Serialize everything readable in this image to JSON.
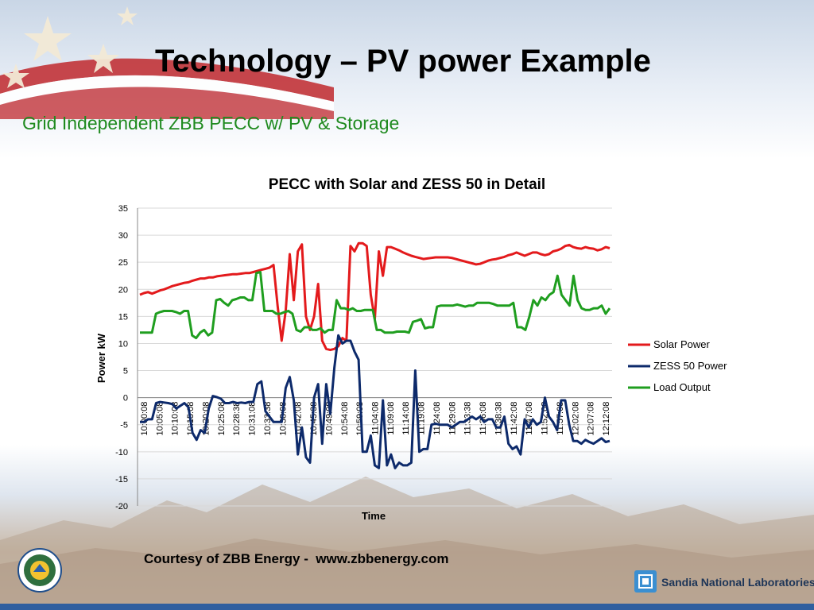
{
  "slide": {
    "title": "Technology – PV power Example",
    "subtitle": "Grid Independent ZBB PECC w/ PV  & Storage",
    "courtesy": "Courtesy of ZBB Energy -  www.zbbenergy.com",
    "sandia_label": "Sandia National Laboratories",
    "doe_seal": "doe-seal-icon",
    "sandia_icon": "sandia-thunderbird-icon"
  },
  "colors": {
    "solar": "#e31a1c",
    "zess": "#0d2a6b",
    "load": "#1f9e1f",
    "subtitle": "#1f8a1f",
    "grid": "#d9d9d9"
  },
  "chart_data": {
    "type": "line",
    "title": "PECC with Solar and ZESS 50 in Detail",
    "xlabel": "Time",
    "ylabel": "Power kW",
    "ylim": [
      -20,
      35
    ],
    "yticks": [
      35,
      30,
      25,
      20,
      15,
      10,
      5,
      0,
      -5,
      -10,
      -15,
      -20
    ],
    "grid": "horizontal",
    "legend": "right",
    "x_tick_labels": [
      "10:00:08",
      "10:05:08",
      "10:10:08",
      "10:15:08",
      "10:20:08",
      "10:25:08",
      "10:28:38",
      "10:31:08",
      "10:33:38",
      "10:38:08",
      "10:42:08",
      "10:45:38",
      "10:49:08",
      "10:54:08",
      "10:59:08",
      "11:04:08",
      "11:09:08",
      "11:14:08",
      "11:19:08",
      "11:24:08",
      "11:29:08",
      "11:33:38",
      "11:36:08",
      "11:38:38",
      "11:42:08",
      "11:47:08",
      "11:52:08",
      "11:57:08",
      "12:02:08",
      "12:07:08",
      "12:12:08"
    ],
    "series": [
      {
        "name": "Solar Power",
        "color": "#e31a1c",
        "values": [
          19,
          19.3,
          19.5,
          19.2,
          19.5,
          19.8,
          20,
          20.3,
          20.6,
          20.8,
          21,
          21.2,
          21.3,
          21.6,
          21.8,
          22,
          22,
          22.2,
          22.2,
          22.4,
          22.5,
          22.6,
          22.7,
          22.8,
          22.8,
          22.9,
          23,
          23,
          23.2,
          23.4,
          23.6,
          23.8,
          24,
          24.5,
          17,
          10.5,
          16,
          26.5,
          18,
          27,
          28.3,
          15,
          12.5,
          15,
          21,
          10.5,
          9,
          8.8,
          9,
          9.5,
          11,
          10.5,
          28,
          27,
          28.5,
          28.5,
          28,
          19,
          14.5,
          27,
          22.5,
          27.8,
          27.8,
          27.5,
          27.2,
          26.8,
          26.5,
          26.2,
          26,
          25.8,
          25.6,
          25.7,
          25.8,
          25.9,
          25.9,
          25.9,
          25.9,
          25.8,
          25.6,
          25.4,
          25.2,
          25,
          24.8,
          24.6,
          24.7,
          25,
          25.3,
          25.5,
          25.6,
          25.8,
          26,
          26.3,
          26.5,
          26.8,
          26.5,
          26.2,
          26.5,
          26.8,
          26.8,
          26.5,
          26.3,
          26.5,
          27,
          27.2,
          27.5,
          28,
          28.2,
          27.8,
          27.6,
          27.5,
          27.8,
          27.6,
          27.5,
          27.2,
          27.4,
          27.8,
          27.6
        ]
      },
      {
        "name": "ZESS 50 Power",
        "color": "#0d2a6b",
        "values": [
          -4.5,
          -4.5,
          -4,
          -4,
          -1,
          -0.8,
          -0.9,
          -1,
          -1.2,
          -2,
          -1.5,
          -1,
          -1.8,
          -6.5,
          -7.8,
          -6,
          -6.5,
          -2,
          0.3,
          0.1,
          -0.2,
          -1,
          -1,
          -0.8,
          -1,
          -0.9,
          -1,
          -0.8,
          -0.8,
          2.5,
          3,
          -2.5,
          -3.5,
          -4.5,
          -4.5,
          -4.5,
          1.8,
          3.8,
          -0.5,
          -10.5,
          -5.5,
          -11,
          -12,
          0,
          2.5,
          -8.5,
          2.5,
          -3,
          5.5,
          11.5,
          10,
          10.5,
          10.5,
          8.5,
          7,
          -10,
          -10,
          -7,
          -12.5,
          -13,
          -0.5,
          -12.5,
          -10.5,
          -13,
          -12,
          -12.5,
          -12.5,
          -12,
          5,
          -10,
          -9.5,
          -9.5,
          -5,
          -4.8,
          -5,
          -5,
          -5,
          -5.5,
          -5,
          -4.5,
          -4.5,
          -4,
          -3.5,
          -4,
          -3.5,
          -4.5,
          -4,
          -4,
          -5.5,
          -5.5,
          -3.5,
          -8.5,
          -9.5,
          -9,
          -10.5,
          -4,
          -5.5,
          -4,
          -5,
          -4.5,
          0,
          -3.5,
          -4.5,
          -6,
          -0.5,
          -0.5,
          -5,
          -8,
          -8,
          -8.5,
          -7.8,
          -8.2,
          -8.5,
          -8,
          -7.5,
          -8.2,
          -8
        ]
      },
      {
        "name": "Load Output",
        "color": "#1f9e1f",
        "values": [
          12,
          12,
          12,
          12,
          15.5,
          15.8,
          16,
          16,
          16,
          15.8,
          15.5,
          16,
          16,
          11.5,
          11,
          12,
          12.5,
          11.5,
          12,
          18,
          18.2,
          17.5,
          17,
          18,
          18.2,
          18.5,
          18.5,
          18,
          18,
          23,
          23.2,
          16,
          16,
          16,
          15.5,
          15.5,
          15.8,
          16,
          15.5,
          12.5,
          12.2,
          13,
          13,
          12.5,
          12.5,
          12.8,
          12,
          12.5,
          12.5,
          18,
          16.5,
          16.5,
          16.2,
          16.5,
          16,
          16,
          16.2,
          16.2,
          16.2,
          12.5,
          12.5,
          12,
          12,
          12,
          12.2,
          12.2,
          12.2,
          12,
          14,
          14.2,
          14.5,
          12.8,
          13,
          13,
          16.8,
          17,
          17,
          17,
          17,
          17.2,
          17,
          16.8,
          17,
          17,
          17.5,
          17.5,
          17.5,
          17.5,
          17.3,
          17,
          17,
          17,
          17,
          17.5,
          13,
          13,
          12.5,
          15,
          18,
          17,
          18.5,
          18,
          19,
          19.5,
          22.5,
          19,
          18,
          17,
          22.5,
          18,
          16.5,
          16.2,
          16.2,
          16.5,
          16.5,
          17,
          15.5,
          16.5
        ]
      }
    ]
  }
}
